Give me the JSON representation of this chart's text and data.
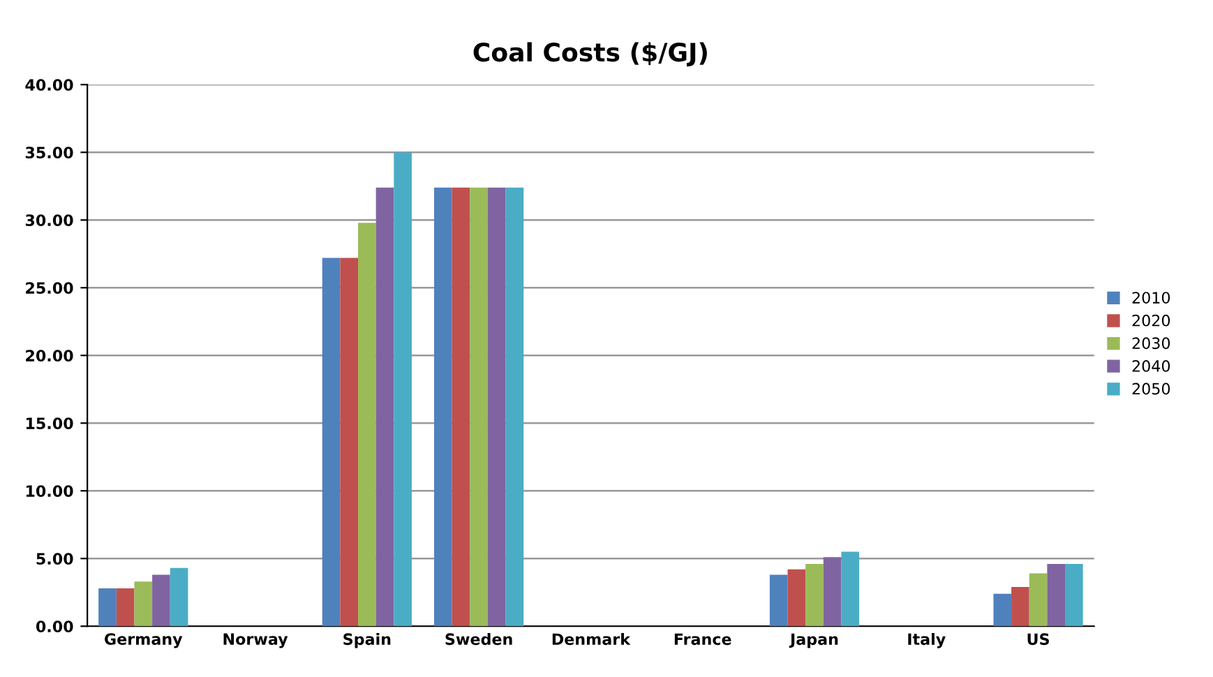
{
  "chart_data": {
    "type": "bar",
    "title": "Coal Costs ($/GJ)",
    "categories": [
      "Germany",
      "Norway",
      "Spain",
      "Sweden",
      "Denmark",
      "France",
      "Japan",
      "Italy",
      "US"
    ],
    "series": [
      {
        "name": "2010",
        "color": "#4f81bd",
        "values": [
          2.8,
          null,
          27.2,
          32.4,
          null,
          null,
          3.8,
          null,
          2.4
        ]
      },
      {
        "name": "2020",
        "color": "#c0504d",
        "values": [
          2.8,
          null,
          27.2,
          32.4,
          null,
          null,
          4.2,
          null,
          2.9
        ]
      },
      {
        "name": "2030",
        "color": "#9bbb59",
        "values": [
          3.3,
          null,
          29.8,
          32.4,
          null,
          null,
          4.6,
          null,
          3.9
        ]
      },
      {
        "name": "2040",
        "color": "#8064a2",
        "values": [
          3.8,
          null,
          32.4,
          32.4,
          null,
          null,
          5.1,
          null,
          4.6
        ]
      },
      {
        "name": "2050",
        "color": "#4bacc6",
        "values": [
          4.3,
          null,
          35.0,
          32.4,
          null,
          null,
          5.5,
          null,
          4.6
        ]
      }
    ],
    "ylim": [
      0,
      40
    ],
    "yticks": [
      {
        "value": 0,
        "label": "0.00"
      },
      {
        "value": 5,
        "label": "5.00"
      },
      {
        "value": 10,
        "label": "10.00"
      },
      {
        "value": 15,
        "label": "15.00"
      },
      {
        "value": 20,
        "label": "20.00"
      },
      {
        "value": 25,
        "label": "25.00"
      },
      {
        "value": 30,
        "label": "30.00"
      },
      {
        "value": 35,
        "label": "35.00"
      },
      {
        "value": 40,
        "label": "40.00"
      }
    ],
    "grid": "y",
    "legend": "right"
  }
}
